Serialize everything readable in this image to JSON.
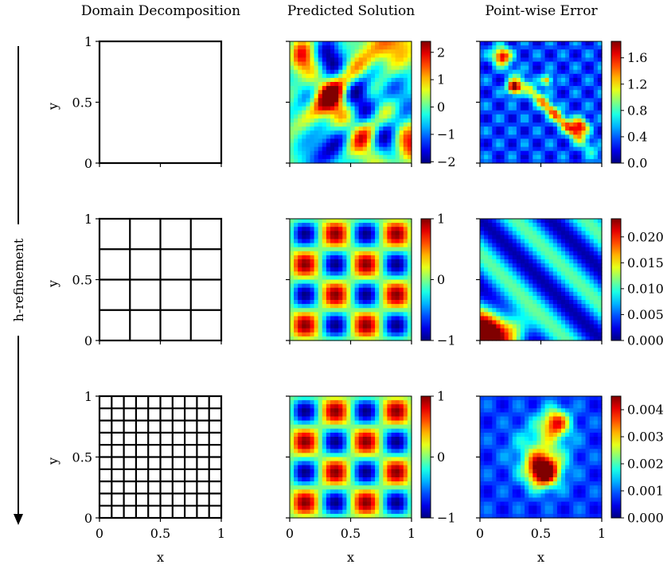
{
  "figure": {
    "column_titles": [
      "Domain Decomposition",
      "Predicted Solution",
      "Point-wise Error"
    ],
    "row_arrow_label": "h-refinement",
    "axis": {
      "x_label": "x",
      "y_label": "y",
      "x_ticks": [
        "0",
        "0.5",
        "1"
      ],
      "y_ticks": [
        "0",
        "0.5",
        "1"
      ]
    },
    "rows": [
      {
        "subdomains_per_side": 1,
        "solution_colorbar_ticks": [
          "−2",
          "−1",
          "0",
          "1",
          "2"
        ],
        "solution_range": [
          -2.05,
          2.4
        ],
        "error_colorbar_ticks": [
          "0.0",
          "0.4",
          "0.8",
          "1.2",
          "1.6"
        ],
        "error_range": [
          0,
          1.85
        ]
      },
      {
        "subdomains_per_side": 4,
        "solution_colorbar_ticks": [
          "−1",
          "0",
          "1"
        ],
        "solution_range": [
          -1,
          1
        ],
        "error_colorbar_ticks": [
          "0.000",
          "0.005",
          "0.010",
          "0.015",
          "0.020"
        ],
        "error_range": [
          0,
          0.0235
        ]
      },
      {
        "subdomains_per_side": 10,
        "solution_colorbar_ticks": [
          "−1",
          "0",
          "1"
        ],
        "solution_range": [
          -1,
          1
        ],
        "error_colorbar_ticks": [
          "0.000",
          "0.001",
          "0.002",
          "0.003",
          "0.004"
        ],
        "error_range": [
          0,
          0.0045
        ]
      }
    ],
    "colormap": "jet"
  }
}
